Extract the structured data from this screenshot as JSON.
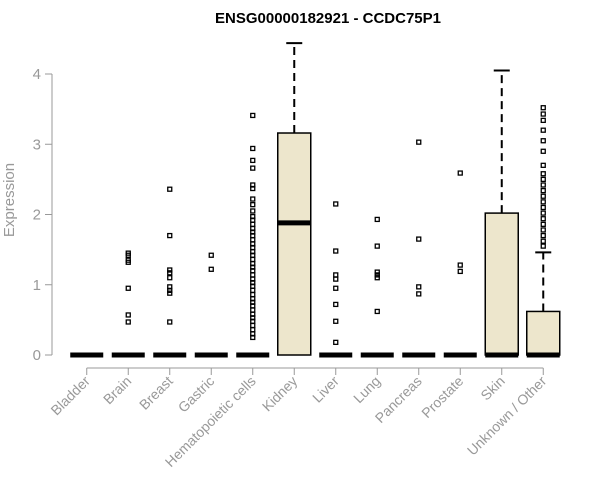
{
  "chart_data": {
    "type": "boxplot",
    "title": "ENSG00000182921 - CCDC75P1",
    "ylabel": "Expression",
    "xlabel": "",
    "ylim": [
      0,
      4.5
    ],
    "yticks": [
      0,
      1,
      2,
      3,
      4
    ],
    "box_fill": "#ede6cc",
    "stroke_color": "#000000",
    "axis_color": "#999999",
    "categories": [
      "Bladder",
      "Brain",
      "Breast",
      "Gastric",
      "Hematopoietic cells",
      "Kidney",
      "Liver",
      "Lung",
      "Pancreas",
      "Prostate",
      "Skin",
      "Unknown / Other"
    ],
    "boxes": [
      {
        "min": 0,
        "q1": 0,
        "median": 0,
        "q3": 0,
        "max": 0,
        "outliers": []
      },
      {
        "min": 0,
        "q1": 0,
        "median": 0,
        "q3": 0,
        "max": 0,
        "outliers": [
          0.47,
          0.57,
          0.95,
          1.32,
          1.35,
          1.42,
          1.45
        ]
      },
      {
        "min": 0,
        "q1": 0,
        "median": 0,
        "q3": 0,
        "max": 0,
        "outliers": [
          0.47,
          0.88,
          0.92,
          0.97,
          1.1,
          1.17,
          1.21,
          1.7,
          2.36
        ]
      },
      {
        "min": 0,
        "q1": 0,
        "median": 0,
        "q3": 0,
        "max": 0,
        "outliers": [
          1.22,
          1.42
        ]
      },
      {
        "min": 0,
        "q1": 0,
        "median": 0,
        "q3": 0,
        "max": 0,
        "outliers": [
          0.25,
          0.3,
          0.36,
          0.42,
          0.48,
          0.53,
          0.58,
          0.64,
          0.7,
          0.75,
          0.8,
          0.86,
          0.92,
          0.98,
          1.03,
          1.08,
          1.14,
          1.2,
          1.25,
          1.3,
          1.36,
          1.42,
          1.47,
          1.53,
          1.58,
          1.64,
          1.7,
          1.75,
          1.8,
          1.86,
          1.92,
          1.97,
          2.05,
          2.14,
          2.22,
          2.37,
          2.42,
          2.66,
          2.77,
          2.94,
          3.41
        ]
      },
      {
        "min": 0,
        "q1": 0,
        "median": 1.88,
        "q3": 3.16,
        "max": 4.44,
        "outliers": []
      },
      {
        "min": 0,
        "q1": 0,
        "median": 0,
        "q3": 0,
        "max": 0,
        "outliers": [
          0.18,
          0.48,
          0.72,
          0.95,
          1.08,
          1.14,
          1.48,
          2.15
        ]
      },
      {
        "min": 0,
        "q1": 0,
        "median": 0,
        "q3": 0,
        "max": 0,
        "outliers": [
          0.62,
          1.1,
          1.14,
          1.18,
          1.55,
          1.93
        ]
      },
      {
        "min": 0,
        "q1": 0,
        "median": 0,
        "q3": 0,
        "max": 0,
        "outliers": [
          0.87,
          0.97,
          1.65,
          3.03
        ]
      },
      {
        "min": 0,
        "q1": 0,
        "median": 0,
        "q3": 0,
        "max": 0,
        "outliers": [
          1.19,
          1.28,
          2.59
        ]
      },
      {
        "min": 0,
        "q1": 0,
        "median": 0,
        "q3": 2.02,
        "max": 4.05,
        "outliers": []
      },
      {
        "min": 0,
        "q1": 0,
        "median": 0,
        "q3": 0.62,
        "max": 1.46,
        "outliers": [
          1.55,
          1.62,
          1.7,
          1.78,
          1.86,
          1.94,
          2.02,
          2.1,
          2.18,
          2.26,
          2.34,
          2.42,
          2.5,
          2.58,
          2.7,
          2.9,
          3.05,
          3.2,
          3.34,
          3.43,
          3.52
        ]
      }
    ]
  }
}
